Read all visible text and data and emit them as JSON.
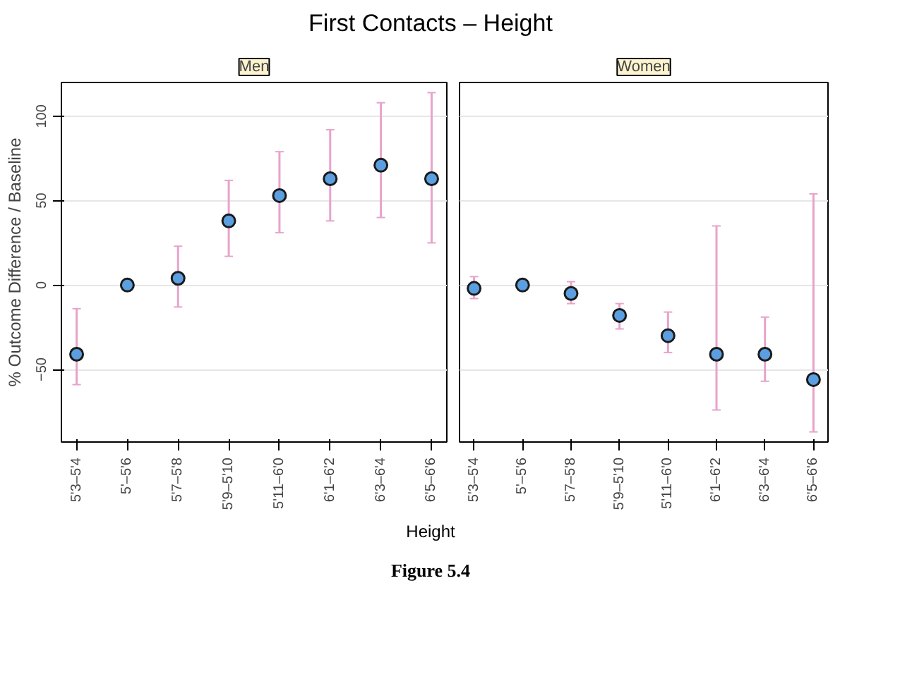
{
  "chart_data": [
    {
      "type": "scatter",
      "title": "Men",
      "ylabel": "% Outcome Difference / Baseline",
      "categories": [
        "5'3–5'4",
        "5'–5'6",
        "5'7–5'8",
        "5'9–5'10",
        "5'11–6'0",
        "6'1–6'2",
        "6'3–6'4",
        "6'5–6'6"
      ],
      "series": [
        {
          "color": "#5b9fe0",
          "values": [
            -41,
            0,
            4,
            38,
            53,
            63,
            71,
            63
          ],
          "errors": [
            [
              -59,
              -14
            ],
            null,
            [
              -13,
              23
            ],
            [
              17,
              62
            ],
            [
              31,
              79
            ],
            [
              38,
              92
            ],
            [
              40,
              108
            ],
            [
              25,
              114
            ]
          ]
        }
      ],
      "ylim": [
        -93,
        120
      ],
      "yticks": [
        -50,
        0,
        50,
        100
      ],
      "grid": "y",
      "marker": "circle"
    },
    {
      "type": "scatter",
      "title": "Women",
      "categories": [
        "5'3–5'4",
        "5'–5'6",
        "5'7–5'8",
        "5'9–5'10",
        "5'11–6'0",
        "6'1–6'2",
        "6'3–6'4",
        "6'5–6'6"
      ],
      "series": [
        {
          "color": "#5b9fe0",
          "values": [
            -2,
            0,
            -5,
            -18,
            -30,
            -41,
            -41,
            -56
          ],
          "errors": [
            [
              -8,
              5
            ],
            null,
            [
              -11,
              2
            ],
            [
              -26,
              -11
            ],
            [
              -40,
              -16
            ],
            [
              -74,
              35
            ],
            [
              -57,
              -19
            ],
            [
              -87,
              54
            ]
          ]
        }
      ],
      "ylim": [
        -93,
        120
      ],
      "yticks": [
        -50,
        0,
        50,
        100
      ],
      "grid": "y",
      "marker": "circle",
      "tick_labels": "x"
    },
    {
      "type": "other",
      "title": "First Contacts – Height",
      "xlabel": "Height",
      "annotations": [
        "Figure 5.4"
      ]
    }
  ]
}
